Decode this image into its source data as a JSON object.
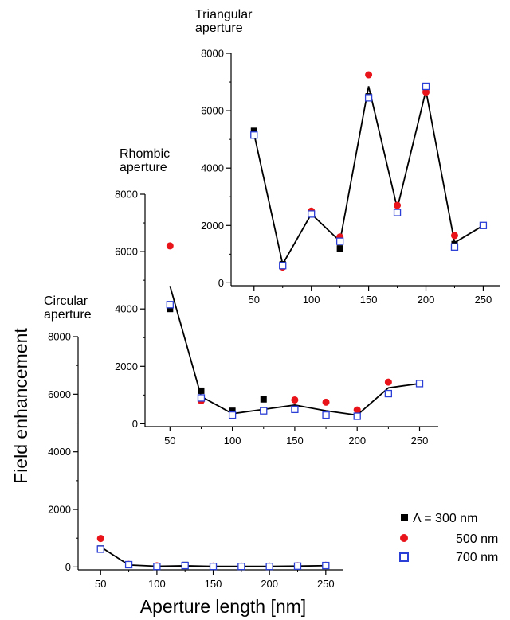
{
  "chart_data": [
    {
      "type": "scatter",
      "title": [
        "Circular",
        "aperture"
      ],
      "x": [
        50,
        75,
        100,
        125,
        150,
        175,
        200,
        225,
        250
      ],
      "xlim": [
        30,
        265
      ],
      "ylim": [
        -100,
        8000
      ],
      "xticks": [
        50,
        100,
        150,
        200,
        250
      ],
      "yticks": [
        0,
        2000,
        4000,
        6000,
        8000
      ],
      "series": [
        {
          "name": "Λ = 300 nm",
          "values": [
            640,
            90,
            30,
            70,
            20,
            20,
            20,
            30,
            50
          ]
        },
        {
          "name": "500 nm",
          "values": [
            990,
            90,
            40,
            50,
            30,
            30,
            30,
            40,
            60
          ]
        },
        {
          "name": "700 nm",
          "values": [
            620,
            80,
            20,
            50,
            20,
            20,
            20,
            30,
            50
          ]
        }
      ],
      "line": [
        700,
        70,
        25,
        40,
        20,
        20,
        20,
        30,
        45
      ]
    },
    {
      "type": "scatter",
      "title": [
        "Rhombic",
        "aperture"
      ],
      "x": [
        50,
        75,
        100,
        125,
        150,
        175,
        200,
        225,
        250
      ],
      "xlim": [
        30,
        265
      ],
      "ylim": [
        -100,
        8000
      ],
      "xticks": [
        50,
        100,
        150,
        200,
        250
      ],
      "yticks": [
        0,
        2000,
        4000,
        6000,
        8000
      ],
      "series": [
        {
          "name": "Λ = 300 nm",
          "values": [
            4000,
            1150,
            450,
            850,
            null,
            null,
            null,
            null,
            null
          ]
        },
        {
          "name": "500 nm",
          "values": [
            6200,
            800,
            320,
            null,
            830,
            750,
            480,
            1450,
            null
          ]
        },
        {
          "name": "700 nm",
          "values": [
            4150,
            900,
            300,
            450,
            500,
            300,
            260,
            1050,
            1400
          ]
        }
      ],
      "line": [
        4800,
        950,
        350,
        500,
        650,
        450,
        300,
        1250,
        1400
      ]
    },
    {
      "type": "scatter",
      "title": [
        "Triangular",
        "aperture"
      ],
      "x": [
        50,
        75,
        100,
        125,
        150,
        175,
        200,
        225,
        250
      ],
      "xlim": [
        30,
        265
      ],
      "ylim": [
        -100,
        8000
      ],
      "xticks": [
        50,
        100,
        150,
        200,
        250
      ],
      "yticks": [
        0,
        2000,
        4000,
        6000,
        8000
      ],
      "series": [
        {
          "name": "Λ = 300 nm",
          "values": [
            5300,
            650,
            2450,
            1200,
            6500,
            null,
            6800,
            1350,
            null
          ]
        },
        {
          "name": "500 nm",
          "values": [
            null,
            550,
            2500,
            1600,
            7250,
            2700,
            6650,
            1650,
            null
          ]
        },
        {
          "name": "700 nm",
          "values": [
            5150,
            600,
            2400,
            1450,
            6450,
            2450,
            6850,
            1250,
            2000
          ]
        }
      ],
      "line": [
        5200,
        650,
        2400,
        1450,
        6850,
        2600,
        6700,
        1400,
        2000
      ]
    }
  ],
  "axes": {
    "xlabel": "Aperture length [nm]",
    "ylabel": "Field enhancement"
  },
  "legend": {
    "placement": "bottom-right",
    "entries": [
      "Λ = 300 nm",
      "500 nm",
      "700 nm"
    ]
  },
  "colors": {
    "series_300": "#000000",
    "series_500": "#e8141a",
    "series_700": "#2b3fd6",
    "line": "#000000"
  }
}
